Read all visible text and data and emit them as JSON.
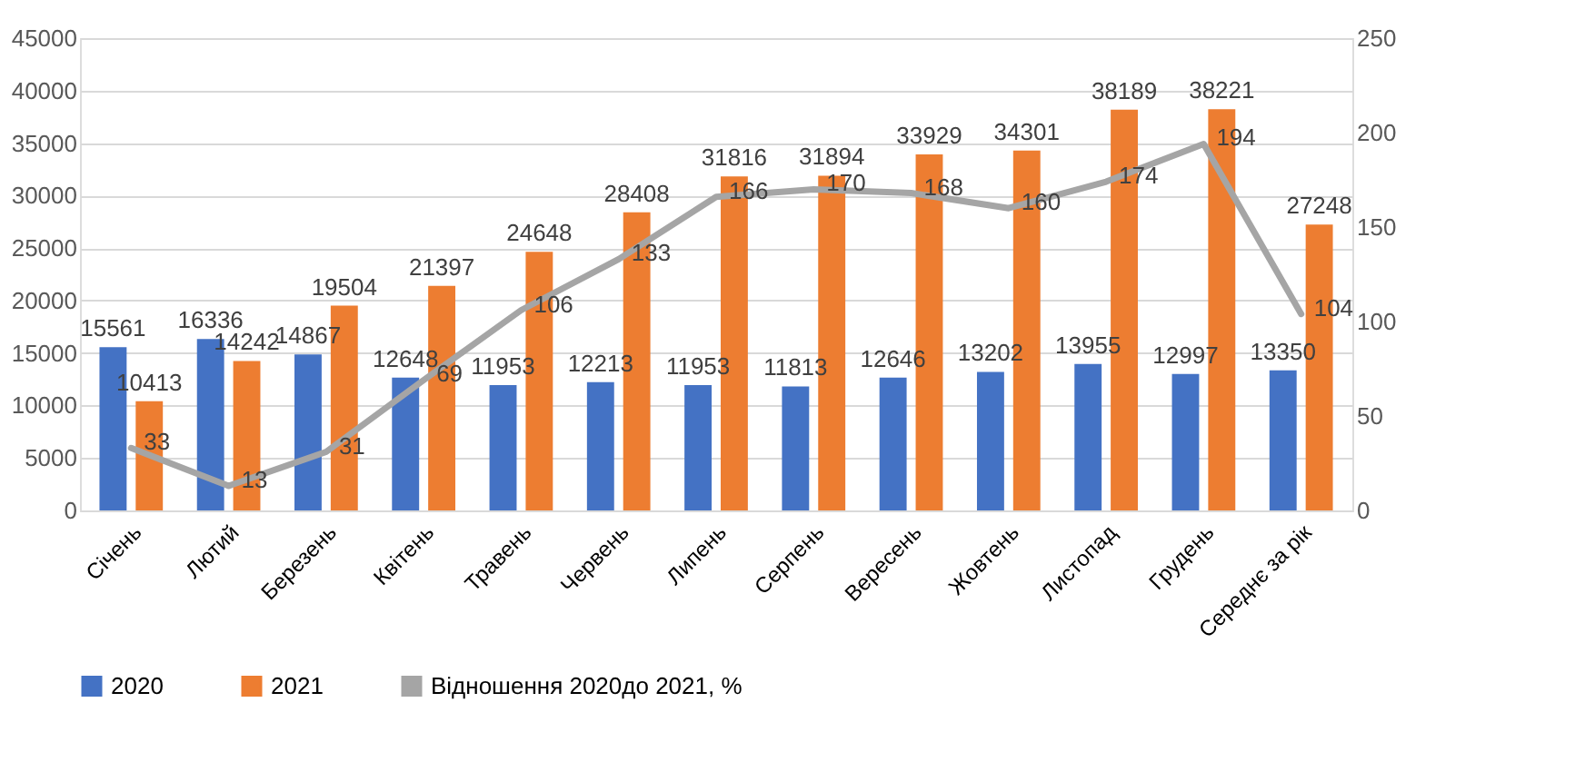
{
  "chart_data": {
    "type": "bar",
    "categories": [
      "Січень",
      "Лютий",
      "Березень",
      "Квітень",
      "Травень",
      "Червень",
      "Липень",
      "Серпень",
      "Вересень",
      "Жовтень",
      "Листопад",
      "Грудень",
      "Середнє за рік"
    ],
    "series": [
      {
        "name": "2020",
        "color": "#4472c4",
        "values": [
          15561,
          16336,
          14867,
          12648,
          11953,
          12213,
          11953,
          11813,
          12646,
          13202,
          13955,
          12997,
          13350
        ]
      },
      {
        "name": "2021",
        "color": "#ed7d31",
        "values": [
          10413,
          14242,
          19504,
          21397,
          24648,
          28408,
          31816,
          31894,
          33929,
          34301,
          38189,
          38221,
          27248
        ]
      },
      {
        "name": "Відношення 2020до 2021, %",
        "type": "line",
        "axis": "y2",
        "color": "#a5a5a5",
        "values": [
          33,
          13,
          31,
          69,
          106,
          133,
          166,
          170,
          168,
          160,
          174,
          194,
          104
        ]
      }
    ],
    "ylim": [
      0,
      45000
    ],
    "yticks": [
      0,
      5000,
      10000,
      15000,
      20000,
      25000,
      30000,
      35000,
      40000,
      45000
    ],
    "y2lim": [
      0,
      250
    ],
    "y2ticks": [
      0,
      50,
      100,
      150,
      200,
      250
    ],
    "grid": "y",
    "legend": "bottom",
    "data_labels": true,
    "marker": "none",
    "line_style": "solid"
  }
}
